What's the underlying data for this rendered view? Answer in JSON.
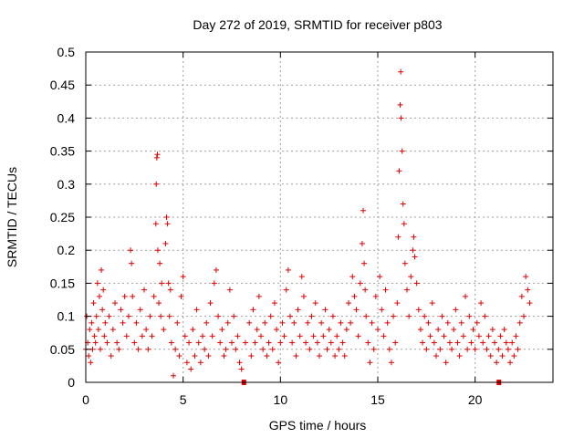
{
  "chart_data": {
    "type": "scatter",
    "title": "Day 272 of 2019, SRMTID for receiver p803",
    "xlabel": "GPS time / hours",
    "ylabel": "SRMTID / TECUs",
    "xlim": [
      0,
      24
    ],
    "ylim": [
      0,
      0.5
    ],
    "x_ticks": [
      0,
      5,
      10,
      15,
      20
    ],
    "y_ticks": [
      0,
      0.05,
      0.1,
      0.15,
      0.2,
      0.25,
      0.3,
      0.35,
      0.4,
      0.45,
      0.5
    ],
    "x_tick_labels": [
      "0",
      "5",
      "10",
      "15",
      "20"
    ],
    "y_tick_labels": [
      "0",
      "0.05",
      "0.1",
      "0.15",
      "0.2",
      "0.25",
      "0.3",
      "0.35",
      "0.4",
      "0.45",
      "0.5"
    ],
    "grid": true,
    "marker": "+",
    "color": "#e00000",
    "series": [
      {
        "name": "SRMTID",
        "points": [
          [
            0.0,
            0.05
          ],
          [
            0.05,
            0.1
          ],
          [
            0.1,
            0.06
          ],
          [
            0.15,
            0.04
          ],
          [
            0.2,
            0.08
          ],
          [
            0.25,
            0.03
          ],
          [
            0.3,
            0.09
          ],
          [
            0.35,
            0.05
          ],
          [
            0.4,
            0.12
          ],
          [
            0.45,
            0.07
          ],
          [
            0.5,
            0.06
          ],
          [
            0.55,
            0.1
          ],
          [
            0.6,
            0.15
          ],
          [
            0.65,
            0.08
          ],
          [
            0.7,
            0.13
          ],
          [
            0.75,
            0.05
          ],
          [
            0.8,
            0.17
          ],
          [
            0.85,
            0.11
          ],
          [
            0.9,
            0.14
          ],
          [
            0.95,
            0.07
          ],
          [
            1.0,
            0.09
          ],
          [
            1.1,
            0.06
          ],
          [
            1.2,
            0.1
          ],
          [
            1.3,
            0.04
          ],
          [
            1.4,
            0.08
          ],
          [
            1.5,
            0.12
          ],
          [
            1.6,
            0.06
          ],
          [
            1.7,
            0.05
          ],
          [
            1.8,
            0.11
          ],
          [
            1.9,
            0.09
          ],
          [
            2.0,
            0.13
          ],
          [
            2.1,
            0.07
          ],
          [
            2.2,
            0.1
          ],
          [
            2.3,
            0.2
          ],
          [
            2.35,
            0.18
          ],
          [
            2.4,
            0.13
          ],
          [
            2.5,
            0.06
          ],
          [
            2.6,
            0.09
          ],
          [
            2.7,
            0.05
          ],
          [
            2.8,
            0.11
          ],
          [
            2.9,
            0.07
          ],
          [
            3.0,
            0.14
          ],
          [
            3.1,
            0.08
          ],
          [
            3.2,
            0.05
          ],
          [
            3.3,
            0.1
          ],
          [
            3.4,
            0.07
          ],
          [
            3.5,
            0.13
          ],
          [
            3.6,
            0.24
          ],
          [
            3.62,
            0.3
          ],
          [
            3.65,
            0.34
          ],
          [
            3.68,
            0.345
          ],
          [
            3.7,
            0.2
          ],
          [
            3.75,
            0.12
          ],
          [
            3.8,
            0.18
          ],
          [
            3.85,
            0.1
          ],
          [
            3.9,
            0.15
          ],
          [
            4.0,
            0.08
          ],
          [
            4.1,
            0.21
          ],
          [
            4.15,
            0.25
          ],
          [
            4.2,
            0.24
          ],
          [
            4.25,
            0.15
          ],
          [
            4.3,
            0.1
          ],
          [
            4.35,
            0.14
          ],
          [
            4.4,
            0.06
          ],
          [
            4.5,
            0.01
          ],
          [
            4.6,
            0.05
          ],
          [
            4.7,
            0.09
          ],
          [
            4.8,
            0.04
          ],
          [
            4.9,
            0.13
          ],
          [
            5.0,
            0.16
          ],
          [
            5.1,
            0.07
          ],
          [
            5.2,
            0.03
          ],
          [
            5.3,
            0.06
          ],
          [
            5.4,
            0.02
          ],
          [
            5.5,
            0.08
          ],
          [
            5.6,
            0.04
          ],
          [
            5.7,
            0.11
          ],
          [
            5.8,
            0.06
          ],
          [
            5.9,
            0.03
          ],
          [
            6.0,
            0.07
          ],
          [
            6.1,
            0.05
          ],
          [
            6.2,
            0.09
          ],
          [
            6.3,
            0.04
          ],
          [
            6.4,
            0.12
          ],
          [
            6.5,
            0.07
          ],
          [
            6.6,
            0.15
          ],
          [
            6.7,
            0.17
          ],
          [
            6.8,
            0.1
          ],
          [
            6.9,
            0.06
          ],
          [
            7.0,
            0.08
          ],
          [
            7.1,
            0.04
          ],
          [
            7.2,
            0.05
          ],
          [
            7.3,
            0.09
          ],
          [
            7.4,
            0.14
          ],
          [
            7.5,
            0.06
          ],
          [
            7.6,
            0.1
          ],
          [
            7.7,
            0.05
          ],
          [
            7.8,
            0.07
          ],
          [
            7.9,
            0.03
          ],
          [
            8.0,
            0.02
          ],
          [
            8.2,
            0.06
          ],
          [
            8.4,
            0.09
          ],
          [
            8.5,
            0.04
          ],
          [
            8.6,
            0.11
          ],
          [
            8.7,
            0.06
          ],
          [
            8.8,
            0.08
          ],
          [
            8.9,
            0.13
          ],
          [
            9.0,
            0.07
          ],
          [
            9.1,
            0.05
          ],
          [
            9.2,
            0.09
          ],
          [
            9.3,
            0.04
          ],
          [
            9.4,
            0.06
          ],
          [
            9.5,
            0.1
          ],
          [
            9.6,
            0.05
          ],
          [
            9.7,
            0.12
          ],
          [
            9.8,
            0.08
          ],
          [
            9.9,
            0.03
          ],
          [
            10.0,
            0.06
          ],
          [
            10.1,
            0.09
          ],
          [
            10.2,
            0.07
          ],
          [
            10.3,
            0.14
          ],
          [
            10.4,
            0.17
          ],
          [
            10.5,
            0.1
          ],
          [
            10.6,
            0.06
          ],
          [
            10.7,
            0.09
          ],
          [
            10.8,
            0.04
          ],
          [
            10.9,
            0.11
          ],
          [
            11.0,
            0.07
          ],
          [
            11.1,
            0.16
          ],
          [
            11.2,
            0.13
          ],
          [
            11.3,
            0.06
          ],
          [
            11.4,
            0.09
          ],
          [
            11.5,
            0.05
          ],
          [
            11.6,
            0.1
          ],
          [
            11.7,
            0.07
          ],
          [
            11.8,
            0.12
          ],
          [
            11.9,
            0.06
          ],
          [
            12.0,
            0.04
          ],
          [
            12.1,
            0.09
          ],
          [
            12.2,
            0.07
          ],
          [
            12.3,
            0.11
          ],
          [
            12.4,
            0.05
          ],
          [
            12.5,
            0.08
          ],
          [
            12.6,
            0.06
          ],
          [
            12.7,
            0.1
          ],
          [
            12.8,
            0.04
          ],
          [
            12.9,
            0.07
          ],
          [
            13.0,
            0.05
          ],
          [
            13.1,
            0.09
          ],
          [
            13.2,
            0.06
          ],
          [
            13.3,
            0.04
          ],
          [
            13.4,
            0.08
          ],
          [
            13.5,
            0.12
          ],
          [
            13.6,
            0.09
          ],
          [
            13.7,
            0.16
          ],
          [
            13.8,
            0.13
          ],
          [
            13.9,
            0.11
          ],
          [
            14.0,
            0.07
          ],
          [
            14.1,
            0.15
          ],
          [
            14.2,
            0.21
          ],
          [
            14.25,
            0.26
          ],
          [
            14.3,
            0.18
          ],
          [
            14.35,
            0.14
          ],
          [
            14.4,
            0.1
          ],
          [
            14.5,
            0.06
          ],
          [
            14.6,
            0.03
          ],
          [
            14.7,
            0.09
          ],
          [
            14.8,
            0.05
          ],
          [
            14.9,
            0.13
          ],
          [
            15.0,
            0.08
          ],
          [
            15.1,
            0.16
          ],
          [
            15.2,
            0.11
          ],
          [
            15.3,
            0.07
          ],
          [
            15.4,
            0.14
          ],
          [
            15.5,
            0.09
          ],
          [
            15.6,
            0.05
          ],
          [
            15.7,
            0.03
          ],
          [
            15.8,
            0.1
          ],
          [
            15.9,
            0.06
          ],
          [
            16.0,
            0.12
          ],
          [
            16.05,
            0.22
          ],
          [
            16.1,
            0.32
          ],
          [
            16.15,
            0.42
          ],
          [
            16.18,
            0.47
          ],
          [
            16.2,
            0.4
          ],
          [
            16.25,
            0.35
          ],
          [
            16.3,
            0.27
          ],
          [
            16.35,
            0.24
          ],
          [
            16.4,
            0.18
          ],
          [
            16.5,
            0.14
          ],
          [
            16.6,
            0.1
          ],
          [
            16.7,
            0.16
          ],
          [
            16.8,
            0.2
          ],
          [
            16.85,
            0.22
          ],
          [
            16.9,
            0.19
          ],
          [
            17.0,
            0.15
          ],
          [
            17.1,
            0.11
          ],
          [
            17.2,
            0.08
          ],
          [
            17.3,
            0.06
          ],
          [
            17.4,
            0.1
          ],
          [
            17.5,
            0.05
          ],
          [
            17.6,
            0.09
          ],
          [
            17.7,
            0.07
          ],
          [
            17.8,
            0.12
          ],
          [
            17.9,
            0.06
          ],
          [
            18.0,
            0.04
          ],
          [
            18.1,
            0.08
          ],
          [
            18.2,
            0.05
          ],
          [
            18.3,
            0.1
          ],
          [
            18.4,
            0.07
          ],
          [
            18.5,
            0.03
          ],
          [
            18.6,
            0.09
          ],
          [
            18.7,
            0.06
          ],
          [
            18.8,
            0.05
          ],
          [
            18.9,
            0.08
          ],
          [
            19.0,
            0.11
          ],
          [
            19.1,
            0.06
          ],
          [
            19.2,
            0.04
          ],
          [
            19.3,
            0.09
          ],
          [
            19.4,
            0.07
          ],
          [
            19.5,
            0.13
          ],
          [
            19.6,
            0.05
          ],
          [
            19.7,
            0.1
          ],
          [
            19.8,
            0.06
          ],
          [
            19.9,
            0.08
          ],
          [
            20.0,
            0.05
          ],
          [
            20.1,
            0.09
          ],
          [
            20.2,
            0.07
          ],
          [
            20.3,
            0.12
          ],
          [
            20.4,
            0.06
          ],
          [
            20.5,
            0.1
          ],
          [
            20.6,
            0.05
          ],
          [
            20.7,
            0.07
          ],
          [
            20.8,
            0.04
          ],
          [
            20.9,
            0.08
          ],
          [
            21.0,
            0.06
          ],
          [
            21.1,
            0.03
          ],
          [
            21.2,
            0.05
          ],
          [
            21.3,
            0.07
          ],
          [
            21.4,
            0.04
          ],
          [
            21.5,
            0.08
          ],
          [
            21.6,
            0.06
          ],
          [
            21.7,
            0.05
          ],
          [
            21.8,
            0.03
          ],
          [
            21.9,
            0.06
          ],
          [
            22.0,
            0.04
          ],
          [
            22.1,
            0.07
          ],
          [
            22.2,
            0.05
          ],
          [
            22.3,
            0.09
          ],
          [
            22.4,
            0.13
          ],
          [
            22.5,
            0.1
          ],
          [
            22.6,
            0.16
          ],
          [
            22.7,
            0.14
          ],
          [
            22.8,
            0.12
          ]
        ]
      }
    ],
    "data_gaps_hours": [
      8.1,
      21.2
    ]
  }
}
